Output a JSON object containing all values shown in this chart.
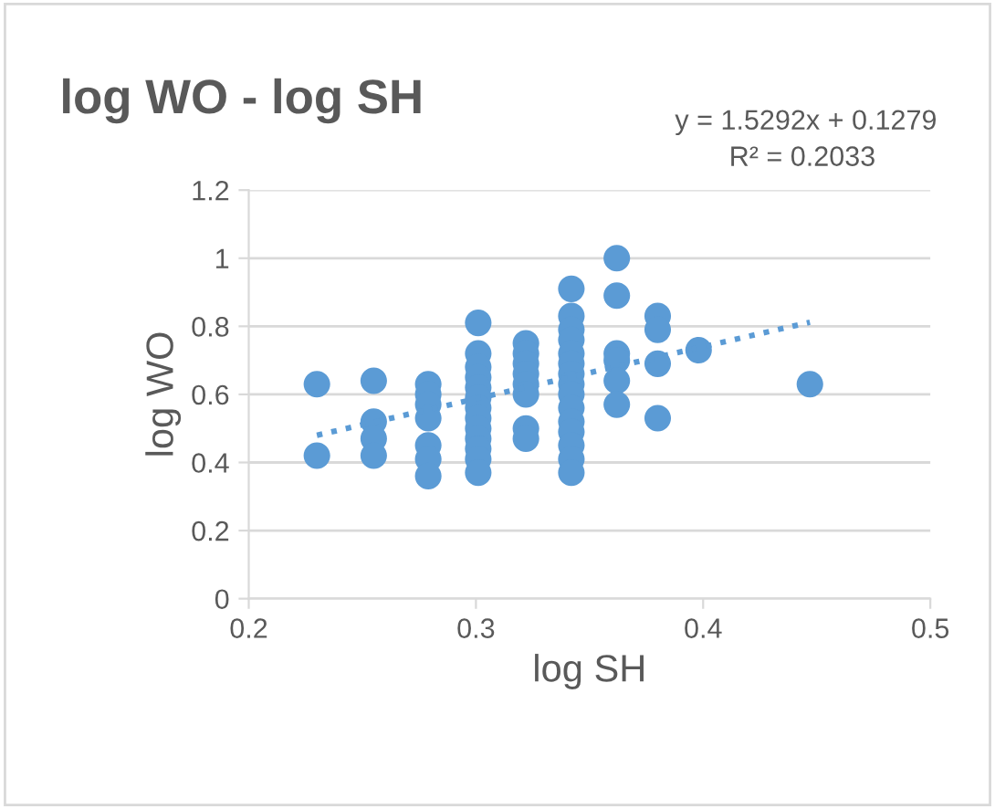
{
  "chart_data": {
    "type": "scatter",
    "title": "log WO - log SH",
    "xlabel": "log SH",
    "ylabel": "log WO",
    "annotations": [
      "y = 1.5292x + 0.1279",
      "R² = 0.2033"
    ],
    "series": [
      {
        "color": "#5b9bd5",
        "marker": "circle",
        "x": [
          0.23,
          0.23,
          0.255,
          0.255,
          0.255,
          0.255,
          0.279,
          0.279,
          0.279,
          0.279,
          0.279,
          0.279,
          0.279,
          0.301,
          0.301,
          0.301,
          0.301,
          0.301,
          0.301,
          0.301,
          0.301,
          0.301,
          0.301,
          0.301,
          0.301,
          0.301,
          0.322,
          0.322,
          0.322,
          0.322,
          0.322,
          0.322,
          0.322,
          0.322,
          0.342,
          0.342,
          0.342,
          0.342,
          0.342,
          0.342,
          0.342,
          0.342,
          0.342,
          0.342,
          0.342,
          0.342,
          0.342,
          0.342,
          0.342,
          0.362,
          0.362,
          0.362,
          0.362,
          0.362,
          0.362,
          0.38,
          0.38,
          0.38,
          0.38,
          0.398,
          0.447
        ],
        "values": [
          0.63,
          0.42,
          0.64,
          0.52,
          0.47,
          0.42,
          0.63,
          0.6,
          0.57,
          0.53,
          0.45,
          0.41,
          0.36,
          0.81,
          0.72,
          0.68,
          0.65,
          0.62,
          0.59,
          0.56,
          0.53,
          0.5,
          0.47,
          0.44,
          0.41,
          0.37,
          0.75,
          0.72,
          0.69,
          0.66,
          0.63,
          0.6,
          0.5,
          0.47,
          0.91,
          0.83,
          0.79,
          0.76,
          0.72,
          0.69,
          0.66,
          0.63,
          0.6,
          0.56,
          0.52,
          0.49,
          0.45,
          0.41,
          0.37,
          1.0,
          0.89,
          0.72,
          0.7,
          0.64,
          0.57,
          0.83,
          0.79,
          0.69,
          0.53,
          0.73,
          0.63
        ]
      },
      {
        "type": "line",
        "color": "#5b9bd5",
        "line_style": "dotted",
        "x": [
          0.23,
          0.447
        ],
        "values": [
          0.48,
          0.812
        ]
      }
    ],
    "xlim": [
      0.2,
      0.5
    ],
    "xticks": [
      0.2,
      0.3,
      0.4,
      0.5
    ],
    "ylim": [
      0,
      1.2
    ],
    "yticks": [
      0,
      0.2,
      0.4,
      0.6,
      0.8,
      1,
      1.2
    ],
    "grid": "y",
    "legend": false
  }
}
